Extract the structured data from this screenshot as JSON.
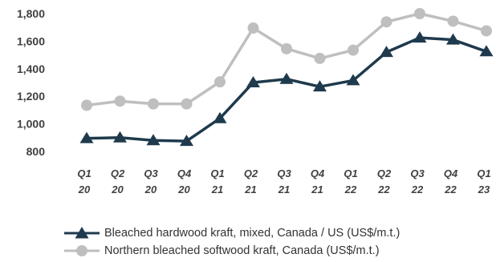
{
  "chart_data": {
    "type": "line",
    "title": "",
    "xlabel": "",
    "ylabel": "",
    "categories": [
      [
        "Q1",
        "20"
      ],
      [
        "Q2",
        "20"
      ],
      [
        "Q3",
        "20"
      ],
      [
        "Q4",
        "20"
      ],
      [
        "Q1",
        "21"
      ],
      [
        "Q2",
        "21"
      ],
      [
        "Q3",
        "21"
      ],
      [
        "Q4",
        "21"
      ],
      [
        "Q1",
        "22"
      ],
      [
        "Q2",
        "22"
      ],
      [
        "Q3",
        "22"
      ],
      [
        "Q4",
        "22"
      ],
      [
        "Q1",
        "23"
      ]
    ],
    "ylim": [
      800,
      1800
    ],
    "yticks": [
      800,
      1000,
      1200,
      1400,
      1600,
      1800
    ],
    "ytick_labels": [
      "800",
      "1,000",
      "1,200",
      "1,400",
      "1,600",
      "1,800"
    ],
    "grid": false,
    "legend_position": "bottom",
    "series": [
      {
        "name": "Bleached hardwood kraft, mixed, Canada / US (US$/m.t.)",
        "color": "#1f3a4d",
        "marker": "triangle",
        "values": [
          895,
          900,
          880,
          875,
          1040,
          1300,
          1325,
          1270,
          1315,
          1520,
          1625,
          1610,
          1525
        ]
      },
      {
        "name": "Northern bleached softwood kraft, Canada (US$/m.t.)",
        "color": "#bfbfbf",
        "marker": "circle",
        "values": [
          1135,
          1165,
          1145,
          1145,
          1305,
          1695,
          1545,
          1475,
          1535,
          1740,
          1800,
          1745,
          1675
        ]
      }
    ]
  }
}
